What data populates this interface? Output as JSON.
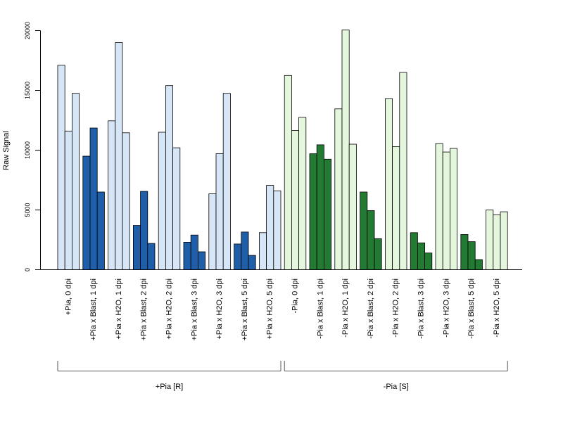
{
  "chart_data": {
    "type": "bar",
    "title": "",
    "xlabel": "",
    "ylabel": "Raw Signal",
    "ylim": [
      0,
      20000
    ],
    "yticks": [
      0,
      5000,
      10000,
      15000,
      20000
    ],
    "grid": false,
    "colors": {
      "pia_plus_control": "#d6e6f6",
      "pia_plus_blast": "#1f5fa9",
      "pia_minus_control": "#e4f7dd",
      "pia_minus_blast": "#237a33",
      "bar_border": "#000000"
    },
    "categories": [
      "+Pia, 0 dpi",
      "+Pia x Blast, 1 dpi",
      "+Pia x H2O, 1 dpi",
      "+Pia x Blast, 2 dpi",
      "+Pia x H2O, 2 dpi",
      "+Pia x Blast, 3 dpi",
      "+Pia x H2O, 3 dpi",
      "+Pia x Blast, 5 dpi",
      "+Pia x H2O, 5 dpi",
      "-Pia, 0 dpi",
      "-Pia x Blast, 1 dpi",
      "-Pia x H2O, 1 dpi",
      "-Pia x Blast, 2 dpi",
      "-Pia x H2O, 2 dpi",
      "-Pia x Blast, 3 dpi",
      "-Pia x H2O, 3 dpi",
      "-Pia x Blast, 5 dpi",
      "-Pia x H2O, 5 dpi"
    ],
    "fill_keys": [
      "pia_plus_control",
      "pia_plus_blast",
      "pia_plus_control",
      "pia_plus_blast",
      "pia_plus_control",
      "pia_plus_blast",
      "pia_plus_control",
      "pia_plus_blast",
      "pia_plus_control",
      "pia_minus_control",
      "pia_minus_blast",
      "pia_minus_control",
      "pia_minus_blast",
      "pia_minus_control",
      "pia_minus_blast",
      "pia_minus_control",
      "pia_minus_blast",
      "pia_minus_control"
    ],
    "values": [
      [
        17100,
        11600,
        14750
      ],
      [
        9500,
        11850,
        6500
      ],
      [
        12450,
        19000,
        11450
      ],
      [
        3700,
        6550,
        2200
      ],
      [
        11500,
        15400,
        10200
      ],
      [
        2300,
        2900,
        1500
      ],
      [
        6350,
        9700,
        14750
      ],
      [
        2150,
        3150,
        1200
      ],
      [
        3100,
        7050,
        6600
      ],
      [
        16250,
        11650,
        12750
      ],
      [
        9700,
        10450,
        9250
      ],
      [
        13450,
        20050,
        10500
      ],
      [
        6500,
        4950,
        2600
      ],
      [
        14300,
        10300,
        16500
      ],
      [
        3100,
        2250,
        1400
      ],
      [
        10550,
        9850,
        10150
      ],
      [
        2950,
        2350,
        850
      ],
      [
        5000,
        4600,
        4850
      ]
    ],
    "groups": [
      {
        "label": "+Pia [R]",
        "from": 0,
        "to": 8
      },
      {
        "label": "-Pia [S]",
        "from": 9,
        "to": 17
      }
    ]
  }
}
